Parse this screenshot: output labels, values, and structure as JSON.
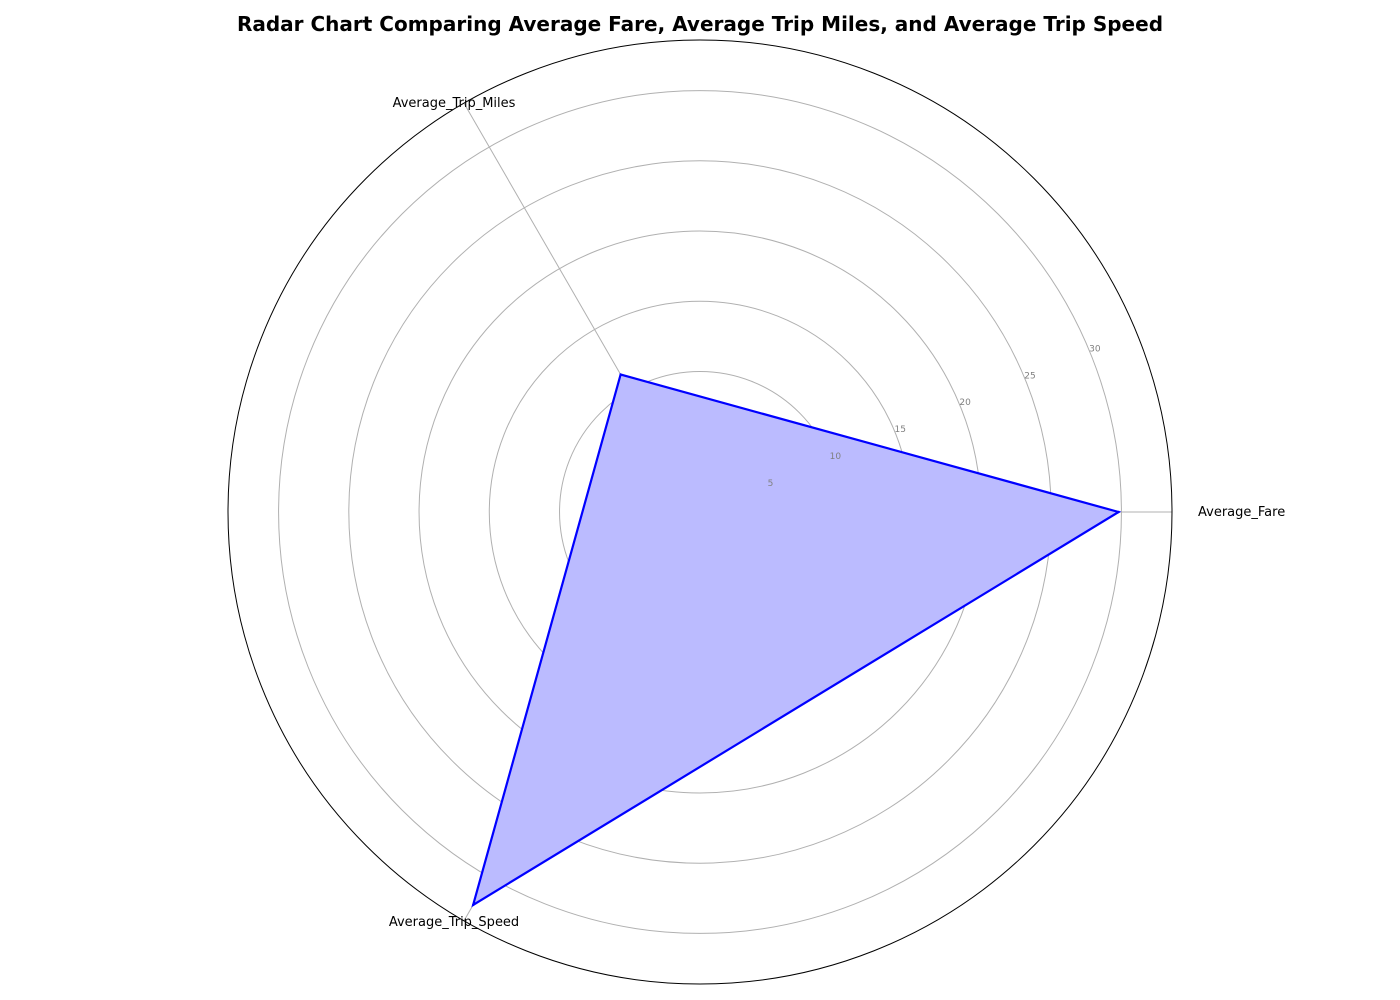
{
  "chart_data": {
    "type": "radar",
    "title": "Radar Chart Comparing Average Fare, Average Trip Miles, and Average Trip Speed",
    "axes": [
      "Average_Fare",
      "Average_Trip_Miles",
      "Average_Trip_Speed"
    ],
    "series": [
      {
        "values": [
          29.8,
          11.3,
          32.3
        ]
      }
    ],
    "r_ticks": [
      5,
      10,
      15,
      20,
      25,
      30
    ],
    "r_tick_labels": [
      "5",
      "10",
      "15",
      "20",
      "25",
      "30"
    ],
    "rlim": [
      0,
      33.6
    ],
    "grid": true,
    "colors": {
      "line": "#0000ff",
      "fill": "#bbbbff",
      "grid": "#b0b0b0",
      "frame": "#000000"
    }
  }
}
